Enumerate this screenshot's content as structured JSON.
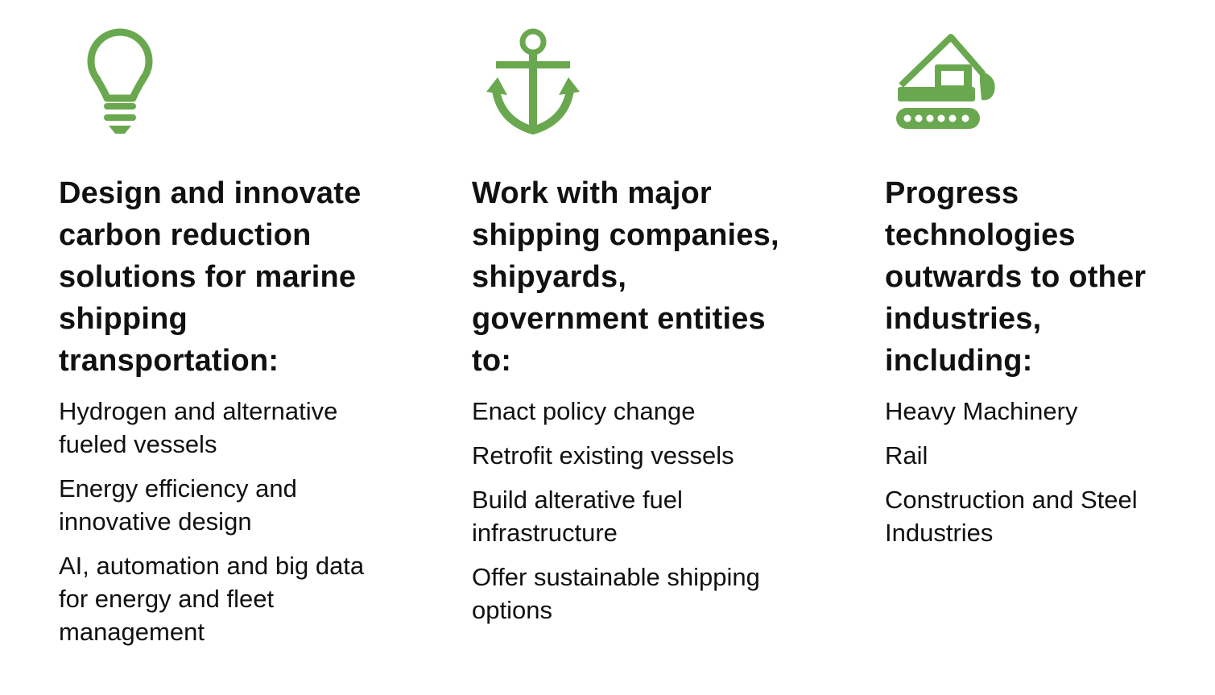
{
  "accent_color": "#6aa84f",
  "columns": [
    {
      "icon": "lightbulb-icon",
      "heading_lines": [
        "Design and innovate",
        "carbon reduction",
        "solutions for marine",
        "shipping",
        "transportation:"
      ],
      "items": [
        [
          "Hydrogen and alternative",
          "fueled vessels"
        ],
        [
          "Energy efficiency and",
          "innovative design"
        ],
        [
          "AI, automation and big data",
          "for energy and fleet",
          "management"
        ]
      ]
    },
    {
      "icon": "anchor-icon",
      "heading_lines": [
        "Work with major",
        "shipping companies,",
        "shipyards,",
        "government entities",
        "to:"
      ],
      "items": [
        [
          "Enact policy change"
        ],
        [
          "Retrofit existing vessels"
        ],
        [
          "Build alterative fuel",
          "infrastructure"
        ],
        [
          "Offer sustainable shipping",
          "options"
        ]
      ]
    },
    {
      "icon": "excavator-icon",
      "heading_lines": [
        "Progress",
        "technologies",
        "outwards to other",
        "industries,",
        "including:"
      ],
      "items": [
        [
          "Heavy Machinery"
        ],
        [
          "Rail"
        ],
        [
          "Construction and Steel",
          "Industries"
        ]
      ]
    }
  ]
}
